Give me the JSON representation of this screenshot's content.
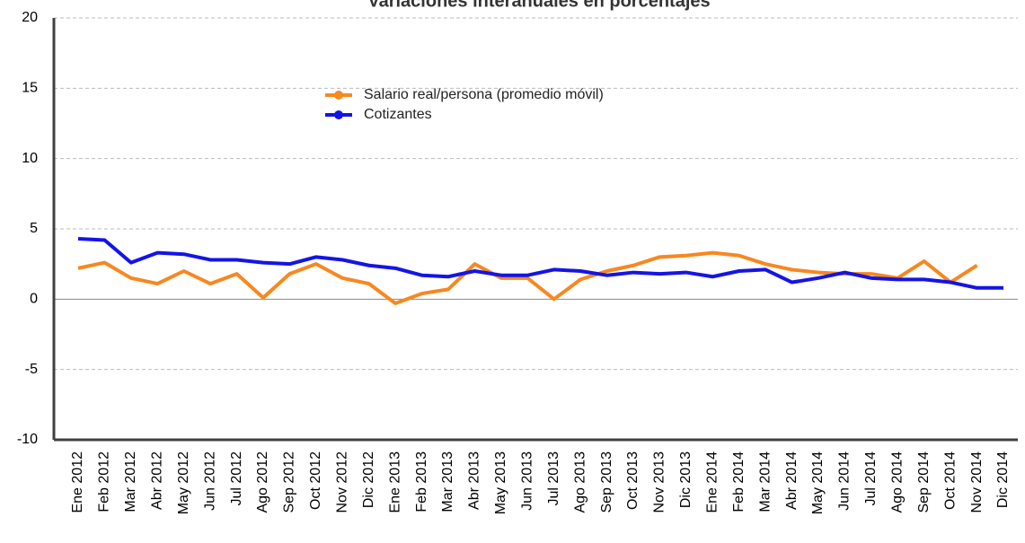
{
  "chart_data": {
    "type": "line",
    "title": "Variaciones interanuales en porcentajes",
    "categories": [
      "Ene 2012",
      "Feb 2012",
      "Mar 2012",
      "Abr 2012",
      "May 2012",
      "Jun 2012",
      "Jul 2012",
      "Ago 2012",
      "Sep 2012",
      "Oct 2012",
      "Nov 2012",
      "Dic 2012",
      "Ene 2013",
      "Feb 2013",
      "Mar 2013",
      "Abr 2013",
      "May 2013",
      "Jun 2013",
      "Jul 2013",
      "Ago 2013",
      "Sep 2013",
      "Oct 2013",
      "Nov 2013",
      "Dic 2013",
      "Ene 2014",
      "Feb 2014",
      "Mar 2014",
      "Abr 2014",
      "May 2014",
      "Jun 2014",
      "Jul 2014",
      "Ago 2014",
      "Sep 2014",
      "Oct 2014",
      "Nov 2014",
      "Dic 2014"
    ],
    "series": [
      {
        "name": "Salario real/persona (promedio móvil)",
        "color": "#f7881f",
        "values": [
          2.2,
          2.6,
          1.5,
          1.1,
          2.0,
          1.1,
          1.8,
          0.1,
          1.8,
          2.5,
          1.5,
          1.1,
          -0.3,
          0.4,
          0.7,
          2.5,
          1.5,
          1.5,
          0.0,
          1.4,
          2.0,
          2.4,
          3.0,
          3.1,
          3.3,
          3.1,
          2.5,
          2.1,
          1.9,
          1.8,
          1.8,
          1.5,
          2.7,
          1.2,
          2.4,
          null
        ]
      },
      {
        "name": "Cotizantes",
        "color": "#1414e6",
        "values": [
          4.3,
          4.2,
          2.6,
          3.3,
          3.2,
          2.8,
          2.8,
          2.6,
          2.5,
          3.0,
          2.8,
          2.4,
          2.2,
          1.7,
          1.6,
          2.0,
          1.7,
          1.7,
          2.1,
          2.0,
          1.7,
          1.9,
          1.8,
          1.9,
          1.6,
          2.0,
          2.1,
          1.2,
          1.5,
          1.9,
          1.5,
          1.4,
          1.4,
          1.2,
          0.8,
          0.8
        ]
      }
    ],
    "ylim": [
      -10,
      20
    ],
    "yticks": [
      -10,
      -5,
      0,
      5,
      10,
      15,
      20
    ],
    "grid": true
  }
}
